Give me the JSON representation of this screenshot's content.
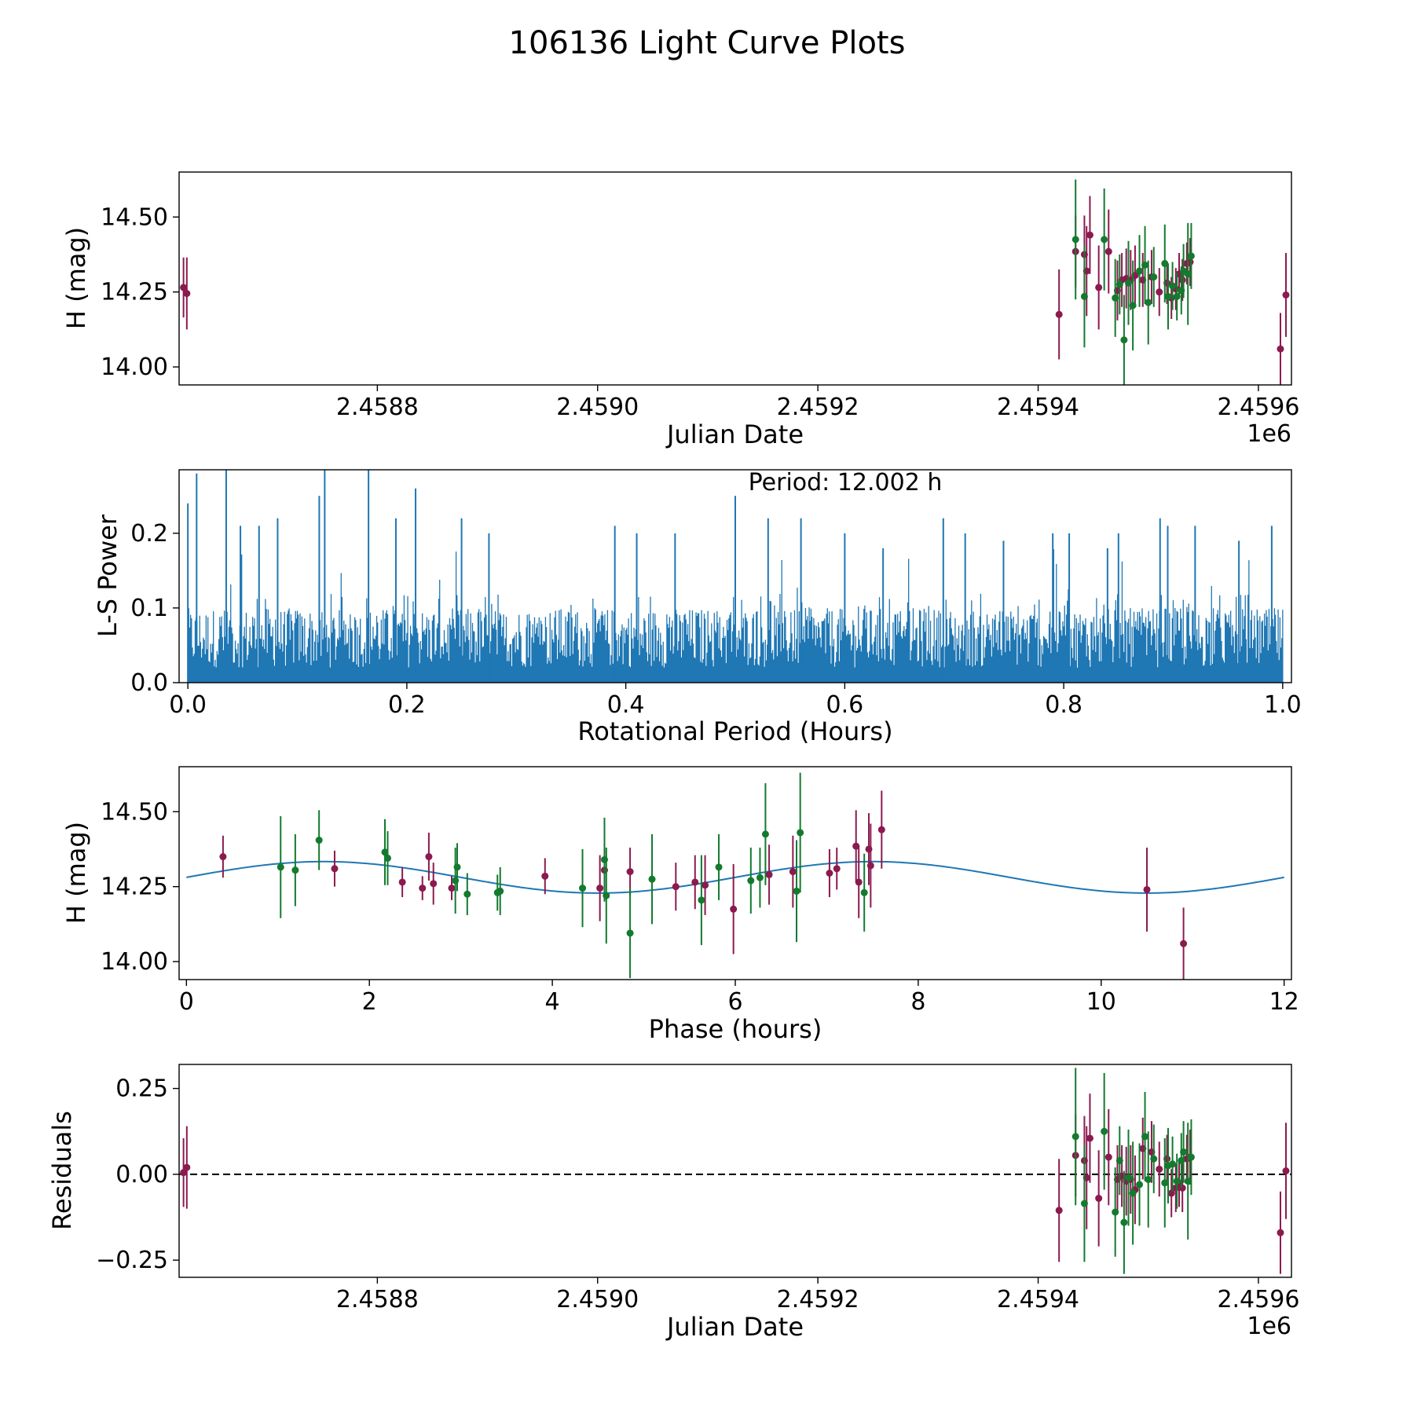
{
  "figure_title": "106136 Light Curve Plots",
  "colors": {
    "series_a": "#8b1a4f",
    "series_b": "#137a2e",
    "periodogram": "#1f77b4",
    "fit": "#1f77b4",
    "zero_line": "#000000"
  },
  "chart_data": [
    {
      "id": "lightcurve",
      "type": "scatter",
      "title": "",
      "xlabel": "Julian Date",
      "ylabel": "H (mag)",
      "offset_label": "1e6",
      "xlim": [
        2458620,
        2459630
      ],
      "ylim": [
        13.94,
        14.65
      ],
      "xticks": [
        2458800,
        2459000,
        2459200,
        2459400,
        2459600
      ],
      "xtick_labels": [
        "2.4588",
        "2.4590",
        "2.4592",
        "2.4594",
        "2.4596"
      ],
      "yticks": [
        14.0,
        14.25,
        14.5
      ],
      "ytick_labels": [
        "14.00",
        "14.25",
        "14.50"
      ],
      "series": [
        {
          "name": "magenta",
          "color": "#8b1a4f",
          "points": [
            [
              2458624,
              14.265,
              0.1
            ],
            [
              2458627,
              14.245,
              0.12
            ],
            [
              2459419,
              14.175,
              0.15
            ],
            [
              2459434,
              14.385,
              0.12
            ],
            [
              2459442,
              14.375,
              0.13
            ],
            [
              2459444,
              14.32,
              0.15
            ],
            [
              2459447,
              14.44,
              0.13
            ],
            [
              2459455,
              14.265,
              0.14
            ],
            [
              2459464,
              14.385,
              0.14
            ],
            [
              2459472,
              14.255,
              0.1
            ],
            [
              2459476,
              14.29,
              0.09
            ],
            [
              2459480,
              14.295,
              0.1
            ],
            [
              2459484,
              14.29,
              0.1
            ],
            [
              2459488,
              14.305,
              0.1
            ],
            [
              2459495,
              14.29,
              0.09
            ],
            [
              2459503,
              14.3,
              0.09
            ],
            [
              2459510,
              14.25,
              0.08
            ],
            [
              2459517,
              14.28,
              0.07
            ],
            [
              2459521,
              14.23,
              0.07
            ],
            [
              2459525,
              14.26,
              0.07
            ],
            [
              2459528,
              14.31,
              0.07
            ],
            [
              2459531,
              14.29,
              0.07
            ],
            [
              2459535,
              14.345,
              0.07
            ],
            [
              2459538,
              14.35,
              0.08
            ],
            [
              2459620,
              14.06,
              0.12
            ],
            [
              2459625,
              14.24,
              0.14
            ]
          ]
        },
        {
          "name": "green",
          "color": "#137a2e",
          "points": [
            [
              2459434,
              14.425,
              0.2
            ],
            [
              2459442,
              14.235,
              0.17
            ],
            [
              2459460,
              14.425,
              0.17
            ],
            [
              2459470,
              14.23,
              0.13
            ],
            [
              2459474,
              14.275,
              0.1
            ],
            [
              2459478,
              14.09,
              0.15
            ],
            [
              2459482,
              14.28,
              0.14
            ],
            [
              2459486,
              14.205,
              0.15
            ],
            [
              2459492,
              14.32,
              0.12
            ],
            [
              2459497,
              14.34,
              0.13
            ],
            [
              2459500,
              14.215,
              0.14
            ],
            [
              2459505,
              14.3,
              0.1
            ],
            [
              2459515,
              14.345,
              0.13
            ],
            [
              2459518,
              14.235,
              0.11
            ],
            [
              2459522,
              14.27,
              0.08
            ],
            [
              2459526,
              14.235,
              0.08
            ],
            [
              2459530,
              14.255,
              0.08
            ],
            [
              2459532,
              14.32,
              0.09
            ],
            [
              2459536,
              14.31,
              0.17
            ],
            [
              2459539,
              14.37,
              0.11
            ]
          ]
        }
      ]
    },
    {
      "id": "periodogram",
      "type": "line",
      "title": "",
      "annotation": "Period: 12.002 h",
      "xlabel": "Rotational Period (Hours)",
      "ylabel": "L-S Power",
      "xlim": [
        -0.008,
        1.008
      ],
      "ylim": [
        0,
        0.285
      ],
      "xticks": [
        0.0,
        0.2,
        0.4,
        0.6,
        0.8,
        1.0
      ],
      "xtick_labels": [
        "0.0",
        "0.2",
        "0.4",
        "0.6",
        "0.8",
        "1.0"
      ],
      "yticks": [
        0.0,
        0.1,
        0.2
      ],
      "ytick_labels": [
        "0.0",
        "0.1",
        "0.2"
      ],
      "x_start": 0.0,
      "x_end": 1.0,
      "samples": 1200,
      "typical_power": 0.1,
      "peaks": [
        [
          0.0,
          0.24
        ],
        [
          0.008,
          0.28
        ],
        [
          0.035,
          0.29
        ],
        [
          0.048,
          0.21
        ],
        [
          0.065,
          0.21
        ],
        [
          0.082,
          0.22
        ],
        [
          0.12,
          0.25
        ],
        [
          0.125,
          0.29
        ],
        [
          0.165,
          0.29
        ],
        [
          0.19,
          0.22
        ],
        [
          0.208,
          0.26
        ],
        [
          0.25,
          0.22
        ],
        [
          0.275,
          0.2
        ],
        [
          0.39,
          0.21
        ],
        [
          0.41,
          0.2
        ],
        [
          0.445,
          0.2
        ],
        [
          0.5,
          0.25
        ],
        [
          0.53,
          0.22
        ],
        [
          0.56,
          0.22
        ],
        [
          0.6,
          0.2
        ],
        [
          0.635,
          0.18
        ],
        [
          0.69,
          0.22
        ],
        [
          0.71,
          0.2
        ],
        [
          0.745,
          0.19
        ],
        [
          0.79,
          0.2
        ],
        [
          0.805,
          0.2
        ],
        [
          0.84,
          0.18
        ],
        [
          0.85,
          0.2
        ],
        [
          0.888,
          0.22
        ],
        [
          0.895,
          0.21
        ],
        [
          0.92,
          0.21
        ],
        [
          0.96,
          0.19
        ],
        [
          0.99,
          0.21
        ]
      ]
    },
    {
      "id": "phased",
      "type": "scatter",
      "title": "",
      "xlabel": "Phase (hours)",
      "ylabel": "H (mag)",
      "xlim": [
        -0.08,
        12.08
      ],
      "ylim": [
        13.94,
        14.65
      ],
      "xticks": [
        0,
        2,
        4,
        6,
        8,
        10,
        12
      ],
      "xtick_labels": [
        "0",
        "2",
        "4",
        "6",
        "8",
        "10",
        "12"
      ],
      "yticks": [
        14.0,
        14.25,
        14.5
      ],
      "ytick_labels": [
        "14.00",
        "14.25",
        "14.50"
      ],
      "fit": {
        "label": "fit",
        "mean": 14.281,
        "amplitude": 0.0525,
        "period": 6.0,
        "peak_at": 1.5,
        "x_start": 0,
        "x_end": 12
      },
      "series": [
        {
          "name": "magenta",
          "color": "#8b1a4f",
          "points": [
            [
              0.4,
              14.35,
              0.07
            ],
            [
              1.62,
              14.31,
              0.06
            ],
            [
              2.36,
              14.265,
              0.05
            ],
            [
              2.58,
              14.245,
              0.04
            ],
            [
              2.65,
              14.35,
              0.08
            ],
            [
              2.7,
              14.26,
              0.07
            ],
            [
              2.9,
              14.245,
              0.04
            ],
            [
              3.92,
              14.285,
              0.06
            ],
            [
              4.52,
              14.245,
              0.11
            ],
            [
              4.57,
              14.305,
              0.09
            ],
            [
              4.85,
              14.3,
              0.08
            ],
            [
              5.35,
              14.25,
              0.08
            ],
            [
              5.56,
              14.265,
              0.09
            ],
            [
              5.67,
              14.255,
              0.1
            ],
            [
              5.98,
              14.175,
              0.15
            ],
            [
              6.37,
              14.29,
              0.1
            ],
            [
              6.63,
              14.3,
              0.12
            ],
            [
              7.03,
              14.295,
              0.08
            ],
            [
              7.11,
              14.31,
              0.07
            ],
            [
              7.32,
              14.385,
              0.12
            ],
            [
              7.35,
              14.265,
              0.12
            ],
            [
              7.46,
              14.375,
              0.12
            ],
            [
              7.48,
              14.32,
              0.14
            ],
            [
              7.6,
              14.44,
              0.13
            ],
            [
              10.5,
              14.24,
              0.14
            ],
            [
              10.9,
              14.06,
              0.12
            ]
          ]
        },
        {
          "name": "green",
          "color": "#137a2e",
          "points": [
            [
              1.03,
              14.315,
              0.17
            ],
            [
              1.19,
              14.305,
              0.12
            ],
            [
              1.45,
              14.405,
              0.1
            ],
            [
              2.17,
              14.365,
              0.11
            ],
            [
              2.2,
              14.345,
              0.09
            ],
            [
              2.94,
              14.27,
              0.11
            ],
            [
              2.96,
              14.315,
              0.08
            ],
            [
              3.07,
              14.225,
              0.07
            ],
            [
              3.4,
              14.23,
              0.06
            ],
            [
              3.43,
              14.235,
              0.08
            ],
            [
              4.33,
              14.245,
              0.13
            ],
            [
              4.57,
              14.34,
              0.14
            ],
            [
              4.59,
              14.22,
              0.16
            ],
            [
              4.85,
              14.095,
              0.15
            ],
            [
              5.09,
              14.275,
              0.15
            ],
            [
              5.63,
              14.205,
              0.15
            ],
            [
              5.82,
              14.315,
              0.11
            ],
            [
              6.17,
              14.27,
              0.11
            ],
            [
              6.27,
              14.28,
              0.1
            ],
            [
              6.33,
              14.425,
              0.17
            ],
            [
              6.67,
              14.235,
              0.17
            ],
            [
              6.71,
              14.43,
              0.2
            ],
            [
              7.41,
              14.23,
              0.13
            ]
          ]
        }
      ]
    },
    {
      "id": "residuals",
      "type": "scatter",
      "title": "",
      "xlabel": "Julian Date",
      "ylabel": "Residuals",
      "offset_label": "1e6",
      "xlim": [
        2458620,
        2459630
      ],
      "ylim": [
        -0.3,
        0.32
      ],
      "xticks": [
        2458800,
        2459000,
        2459200,
        2459400,
        2459600
      ],
      "xtick_labels": [
        "2.4588",
        "2.4590",
        "2.4592",
        "2.4594",
        "2.4596"
      ],
      "yticks": [
        -0.25,
        0.0,
        0.25
      ],
      "ytick_labels": [
        "−0.25",
        "0.00",
        "0.25"
      ],
      "reference_line": 0.0,
      "series": [
        {
          "name": "magenta",
          "color": "#8b1a4f",
          "points": [
            [
              2458624,
              0.005,
              0.1
            ],
            [
              2458627,
              0.02,
              0.12
            ],
            [
              2459419,
              -0.105,
              0.15
            ],
            [
              2459434,
              0.055,
              0.12
            ],
            [
              2459442,
              0.04,
              0.13
            ],
            [
              2459444,
              -0.01,
              0.15
            ],
            [
              2459447,
              0.105,
              0.13
            ],
            [
              2459455,
              -0.07,
              0.14
            ],
            [
              2459464,
              0.05,
              0.14
            ],
            [
              2459472,
              -0.015,
              0.1
            ],
            [
              2459476,
              -0.005,
              0.09
            ],
            [
              2459480,
              -0.02,
              0.1
            ],
            [
              2459484,
              -0.015,
              0.1
            ],
            [
              2459488,
              -0.045,
              0.1
            ],
            [
              2459495,
              0.075,
              0.09
            ],
            [
              2459503,
              0.065,
              0.09
            ],
            [
              2459510,
              0.015,
              0.08
            ],
            [
              2459517,
              0.045,
              0.07
            ],
            [
              2459521,
              -0.055,
              0.07
            ],
            [
              2459525,
              -0.04,
              0.07
            ],
            [
              2459528,
              -0.025,
              0.07
            ],
            [
              2459531,
              -0.04,
              0.07
            ],
            [
              2459535,
              0.045,
              0.07
            ],
            [
              2459538,
              0.05,
              0.08
            ],
            [
              2459620,
              -0.17,
              0.12
            ],
            [
              2459625,
              0.01,
              0.14
            ]
          ]
        },
        {
          "name": "green",
          "color": "#137a2e",
          "points": [
            [
              2459434,
              0.11,
              0.2
            ],
            [
              2459442,
              -0.085,
              0.17
            ],
            [
              2459460,
              0.125,
              0.17
            ],
            [
              2459470,
              -0.11,
              0.13
            ],
            [
              2459474,
              0.04,
              0.1
            ],
            [
              2459478,
              -0.14,
              0.15
            ],
            [
              2459482,
              -0.01,
              0.14
            ],
            [
              2459486,
              -0.055,
              0.15
            ],
            [
              2459492,
              -0.03,
              0.12
            ],
            [
              2459497,
              0.11,
              0.13
            ],
            [
              2459500,
              -0.015,
              0.14
            ],
            [
              2459505,
              0.045,
              0.1
            ],
            [
              2459515,
              -0.025,
              0.13
            ],
            [
              2459518,
              0.025,
              0.11
            ],
            [
              2459522,
              0.03,
              0.08
            ],
            [
              2459526,
              -0.02,
              0.08
            ],
            [
              2459530,
              0.04,
              0.08
            ],
            [
              2459532,
              0.065,
              0.09
            ],
            [
              2459536,
              -0.02,
              0.17
            ],
            [
              2459539,
              0.05,
              0.11
            ]
          ]
        }
      ]
    }
  ]
}
